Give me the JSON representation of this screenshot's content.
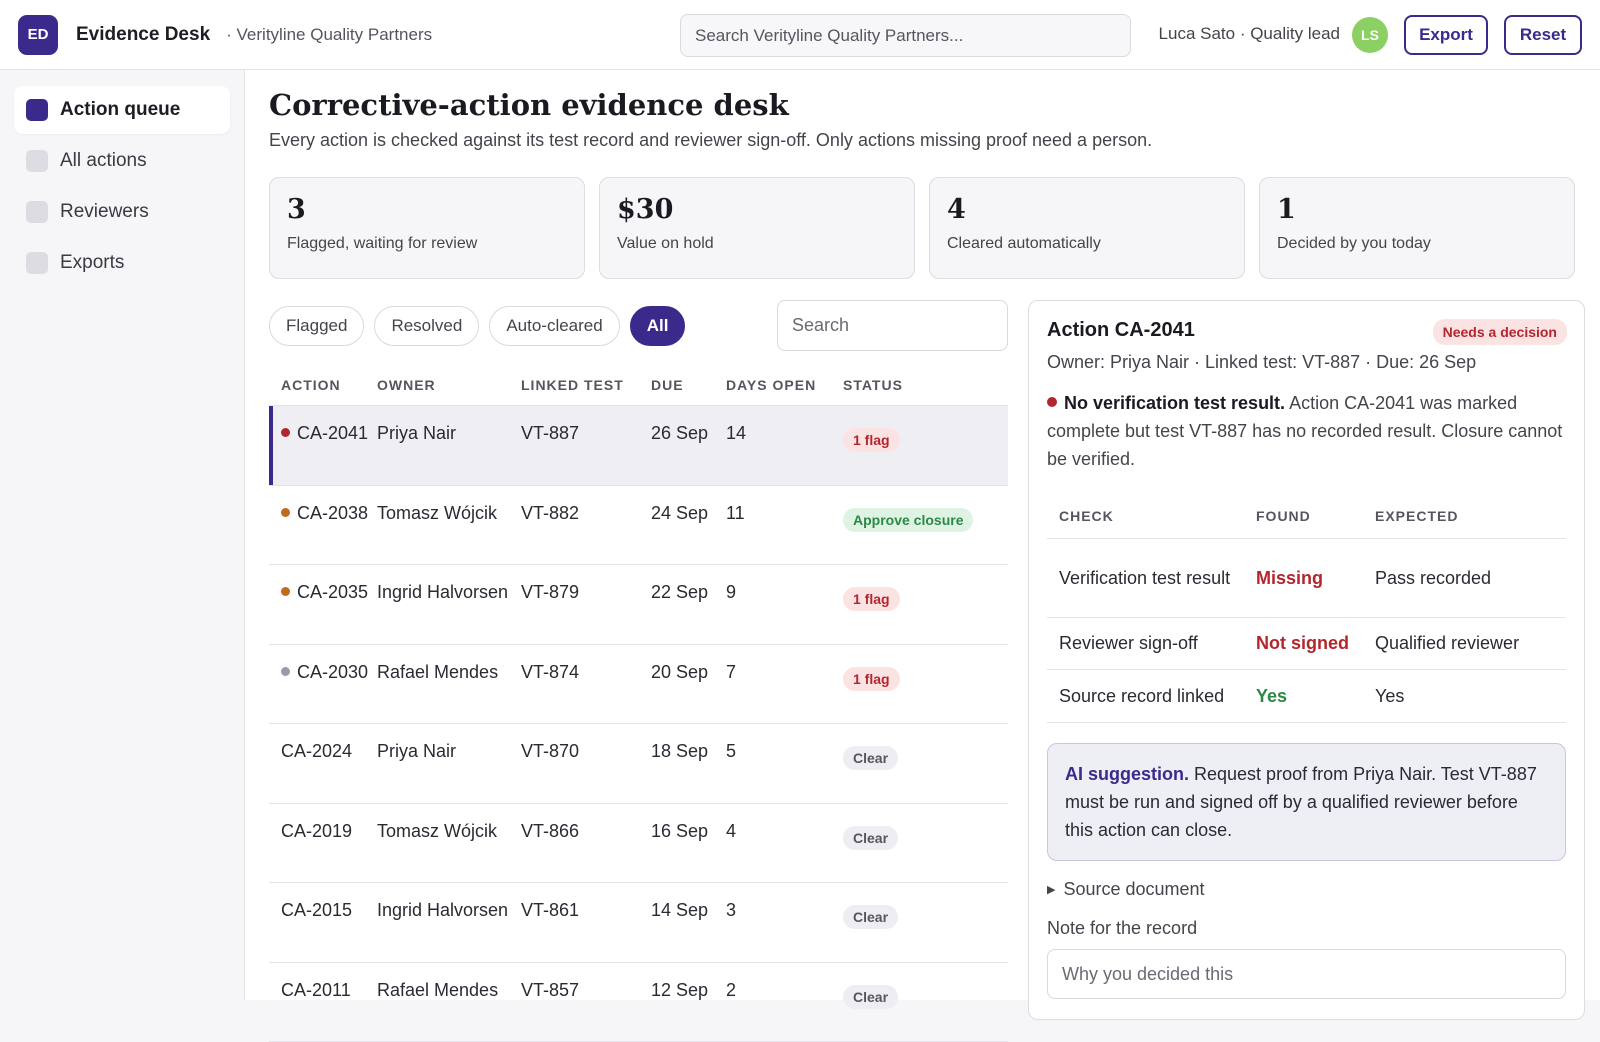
{
  "header": {
    "logo_text": "ED",
    "app_title": "Evidence Desk",
    "org": "· Verityline Quality Partners",
    "search_placeholder": "Search Verityline Quality Partners...",
    "user": "Luca Sato · Quality lead",
    "avatar_initials": "LS",
    "export_label": "Export",
    "reset_label": "Reset"
  },
  "sidebar": {
    "items": [
      {
        "label": "Action queue",
        "active": true
      },
      {
        "label": "All actions",
        "active": false
      },
      {
        "label": "Reviewers",
        "active": false
      },
      {
        "label": "Exports",
        "active": false
      }
    ]
  },
  "page": {
    "title": "Corrective-action evidence desk",
    "subtitle": "Every action is checked against its test record and reviewer sign-off. Only actions missing proof need a person."
  },
  "stats": [
    {
      "value": "3",
      "label": "Flagged, waiting for review"
    },
    {
      "value": "$30",
      "label": "Value on hold"
    },
    {
      "value": "4",
      "label": "Cleared automatically"
    },
    {
      "value": "1",
      "label": "Decided by you today"
    }
  ],
  "filters": {
    "chips": [
      "Flagged",
      "Resolved",
      "Auto-cleared",
      "All"
    ],
    "active": "All",
    "search_placeholder": "Search"
  },
  "table": {
    "columns": [
      "ACTION",
      "OWNER",
      "LINKED TEST",
      "DUE",
      "DAYS OPEN",
      "STATUS"
    ],
    "rows": [
      {
        "action": "CA-2041",
        "owner": "Priya Nair",
        "test": "VT-887",
        "due": "26 Sep",
        "days": "14",
        "status": "1 flag",
        "kind": "flag",
        "dot": "#b3262e",
        "selected": true
      },
      {
        "action": "CA-2038",
        "owner": "Tomasz Wójcik",
        "test": "VT-882",
        "due": "24 Sep",
        "days": "11",
        "status": "Approve closure",
        "kind": "approve",
        "dot": "#c06a1f",
        "selected": false
      },
      {
        "action": "CA-2035",
        "owner": "Ingrid Halvorsen",
        "test": "VT-879",
        "due": "22 Sep",
        "days": "9",
        "status": "1 flag",
        "kind": "flag",
        "dot": "#c06a1f",
        "selected": false
      },
      {
        "action": "CA-2030",
        "owner": "Rafael Mendes",
        "test": "VT-874",
        "due": "20 Sep",
        "days": "7",
        "status": "1 flag",
        "kind": "flag",
        "dot": "#9a9aa8",
        "selected": false
      },
      {
        "action": "CA-2024",
        "owner": "Priya Nair",
        "test": "VT-870",
        "due": "18 Sep",
        "days": "5",
        "status": "Clear",
        "kind": "clear",
        "dot": "",
        "selected": false
      },
      {
        "action": "CA-2019",
        "owner": "Tomasz Wójcik",
        "test": "VT-866",
        "due": "16 Sep",
        "days": "4",
        "status": "Clear",
        "kind": "clear",
        "dot": "",
        "selected": false
      },
      {
        "action": "CA-2015",
        "owner": "Ingrid Halvorsen",
        "test": "VT-861",
        "due": "14 Sep",
        "days": "3",
        "status": "Clear",
        "kind": "clear",
        "dot": "",
        "selected": false
      },
      {
        "action": "CA-2011",
        "owner": "Rafael Mendes",
        "test": "VT-857",
        "due": "12 Sep",
        "days": "2",
        "status": "Clear",
        "kind": "clear",
        "dot": "",
        "selected": false
      }
    ]
  },
  "detail": {
    "title": "Action CA-2041",
    "badge": "Needs a decision",
    "meta": "Owner: Priya Nair · Linked test: VT-887 · Due: 26 Sep",
    "issue_title": "No verification test result.",
    "issue_text": " Action CA-2041 was marked complete but test VT-887 has no recorded result. Closure cannot be verified.",
    "check_columns": [
      "CHECK",
      "FOUND",
      "EXPECTED"
    ],
    "checks": [
      {
        "check": "Verification test result",
        "found": "Missing",
        "expected": "Pass recorded",
        "ok": false
      },
      {
        "check": "Reviewer sign-off",
        "found": "Not signed",
        "expected": "Qualified reviewer",
        "ok": false
      },
      {
        "check": "Source record linked",
        "found": "Yes",
        "expected": "Yes",
        "ok": true
      }
    ],
    "ai_label": "AI suggestion.",
    "ai_text": " Request proof from Priya Nair. Test VT-887 must be run and signed off by a qualified reviewer before this action can close.",
    "source_doc": "Source document",
    "note_label": "Note for the record",
    "note_placeholder": "Why you decided this"
  }
}
